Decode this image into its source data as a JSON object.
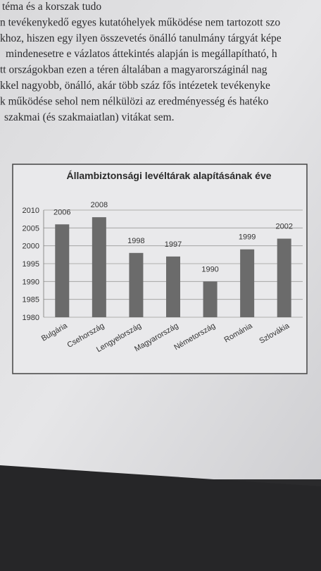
{
  "page_text": {
    "lines": [
      "téma és a korszak tudo",
      "n tevékenykedő egyes kutatóhelyek működése nem tartozott szo",
      "khoz, hiszen egy ilyen összevetés önálló tanulmány tárgyát képe",
      "mindenesetre e vázlatos áttekintés alapján is megállapítható, h",
      "tt országokban ezen a téren általában a magyarországinál nag",
      "kkel nagyobb, önálló, akár több száz fős intézetek tevékenyke",
      "k működése sehol nem nélkülözi az eredményesség és hatéko",
      "szakmai (és szakmaiatlan) vitákat sem."
    ]
  },
  "chart_data": {
    "type": "bar",
    "title": "Állambiztonsági levéltárak alapításának éve",
    "categories": [
      "Bulgária",
      "Csehország",
      "Lengyelország",
      "Magyarország",
      "Németország",
      "Románia",
      "Szlovákia"
    ],
    "values": [
      2006,
      2008,
      1998,
      1997,
      1990,
      1999,
      2002
    ],
    "color": "#6b6b6b",
    "ylim": [
      1980,
      2010
    ],
    "yticks": [
      1980,
      1985,
      1990,
      1995,
      2000,
      2005,
      2010
    ],
    "grid": true
  }
}
